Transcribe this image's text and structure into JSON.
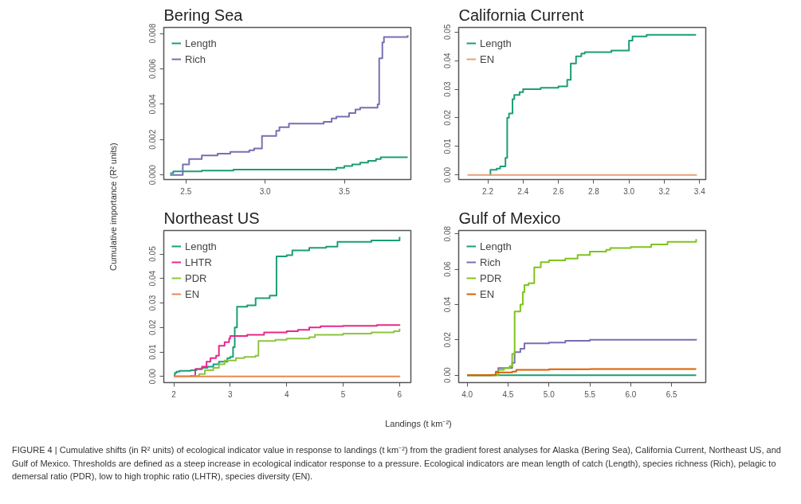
{
  "chart_data": [
    {
      "type": "step",
      "title": "Bering Sea",
      "ylabel": "Cumulative importance (R² units)",
      "xlabel": "Landings (t km⁻²)",
      "annotations": [
        "FIGURE 4 | Cumulative shifts (in R² units) of ecological indicator value in response to landings (t km⁻²) from the gradient forest analyses for Alaska (Bering Sea), California Current, Northeast US, and Gulf of Mexico. Thresholds are defined as a steep increase in ecological indicator response to a pressure. Ecological indicators are mean length of catch (Length), species richness (Rich), pelagic to demersal ratio (PDR), low to high trophic ratio (LHTR), species diversity (EN)."
      ],
      "legend": "top left",
      "grid": false,
      "line_style": "solid",
      "xlim": [
        2.36,
        3.92
      ],
      "xticks": [
        {
          "value": 2.5,
          "label": "2.5"
        },
        {
          "value": 3.0,
          "label": "3.0"
        },
        {
          "value": 3.5,
          "label": "3.5"
        }
      ],
      "ylim": [
        -0.00026,
        0.00834
      ],
      "yticks": [
        {
          "value": 0,
          "label": "0.000"
        },
        {
          "value": 0.002,
          "label": "0.002"
        },
        {
          "value": 0.004,
          "label": "0.004"
        },
        {
          "value": 0.006,
          "label": "0.006"
        },
        {
          "value": 0.008,
          "label": "0.008"
        }
      ],
      "series": [
        {
          "name": "Length",
          "color": "#1b9e77",
          "x": [
            2.4,
            2.42,
            2.6,
            2.8,
            3.0,
            3.45,
            3.5,
            3.55,
            3.6,
            3.65,
            3.7,
            3.73,
            3.9
          ],
          "values": [
            0.0001,
            0.0002,
            0.00025,
            0.0003,
            0.0003,
            0.0004,
            0.0005,
            0.0006,
            0.0007,
            0.0008,
            0.0009,
            0.001,
            0.001
          ]
        },
        {
          "name": "Rich",
          "color": "#7570b3",
          "x": [
            2.4,
            2.48,
            2.52,
            2.6,
            2.7,
            2.78,
            2.9,
            2.93,
            2.98,
            3.07,
            3.09,
            3.15,
            3.37,
            3.42,
            3.45,
            3.53,
            3.57,
            3.6,
            3.71,
            3.72,
            3.74,
            3.75,
            3.9
          ],
          "values": [
            0.0,
            0.0006,
            0.0009,
            0.0011,
            0.0012,
            0.0013,
            0.0014,
            0.0015,
            0.0022,
            0.0025,
            0.0027,
            0.0029,
            0.003,
            0.0032,
            0.0033,
            0.0035,
            0.0037,
            0.0038,
            0.004,
            0.0066,
            0.0075,
            0.0078,
            0.0079
          ]
        }
      ]
    },
    {
      "type": "step",
      "title": "California Current",
      "legend": "top left",
      "grid": false,
      "line_style": "solid",
      "xlim": [
        2.035,
        3.435
      ],
      "xticks": [
        {
          "value": 2.2,
          "label": "2.2"
        },
        {
          "value": 2.4,
          "label": "2.4"
        },
        {
          "value": 2.6,
          "label": "2.6"
        },
        {
          "value": 2.8,
          "label": "2.8"
        },
        {
          "value": 3.0,
          "label": "3.0"
        },
        {
          "value": 3.2,
          "label": "3.2"
        },
        {
          "value": 3.4,
          "label": "3.4"
        }
      ],
      "ylim": [
        -0.0016,
        0.0516
      ],
      "yticks": [
        {
          "value": 0,
          "label": "0.00"
        },
        {
          "value": 0.01,
          "label": "0.01"
        },
        {
          "value": 0.02,
          "label": "0.02"
        },
        {
          "value": 0.03,
          "label": "0.03"
        },
        {
          "value": 0.04,
          "label": "0.04"
        },
        {
          "value": 0.05,
          "label": "0.05"
        }
      ],
      "series": [
        {
          "name": "Length",
          "color": "#1b9e77",
          "x": [
            2.21,
            2.215,
            2.25,
            2.27,
            2.3,
            2.31,
            2.32,
            2.34,
            2.35,
            2.38,
            2.4,
            2.5,
            2.6,
            2.65,
            2.67,
            2.7,
            2.73,
            2.75,
            2.9,
            3.0,
            3.02,
            3.1,
            3.38
          ],
          "values": [
            0.0,
            0.0018,
            0.0022,
            0.003,
            0.006,
            0.02,
            0.0215,
            0.0265,
            0.028,
            0.029,
            0.03,
            0.0305,
            0.031,
            0.0333,
            0.039,
            0.0415,
            0.0425,
            0.043,
            0.0435,
            0.047,
            0.0485,
            0.049,
            0.049
          ]
        },
        {
          "name": "EN",
          "color": "#e6a176",
          "x": [
            2.085,
            3.385
          ],
          "values": [
            0.0,
            0.0
          ]
        }
      ]
    },
    {
      "type": "step",
      "title": "Northeast US",
      "legend": "top left",
      "grid": false,
      "line_style": "solid",
      "xlim": [
        1.823,
        6.2
      ],
      "xticks": [
        2,
        3,
        4,
        5,
        6
      ],
      "ylim": [
        -0.0025,
        0.0596
      ],
      "yticks": [
        {
          "value": 0,
          "label": "0.00"
        },
        {
          "value": 0.01,
          "label": "0.01"
        },
        {
          "value": 0.02,
          "label": "0.02"
        },
        {
          "value": 0.03,
          "label": "0.03"
        },
        {
          "value": 0.04,
          "label": "0.04"
        },
        {
          "value": 0.05,
          "label": "0.05"
        }
      ],
      "series": [
        {
          "name": "Length",
          "color": "#1b9e77",
          "x": [
            2.0,
            2.02,
            2.05,
            2.1,
            2.3,
            2.4,
            2.5,
            2.6,
            2.7,
            2.8,
            2.95,
            3.0,
            3.05,
            3.08,
            3.12,
            3.3,
            3.45,
            3.7,
            3.82,
            4.0,
            4.1,
            4.4,
            4.7,
            4.9,
            5.5,
            6.0
          ],
          "values": [
            0.0005,
            0.0015,
            0.002,
            0.0023,
            0.0025,
            0.003,
            0.0035,
            0.004,
            0.005,
            0.006,
            0.0075,
            0.008,
            0.012,
            0.02,
            0.0285,
            0.029,
            0.032,
            0.033,
            0.049,
            0.0495,
            0.0515,
            0.0525,
            0.053,
            0.055,
            0.0555,
            0.057
          ]
        },
        {
          "name": "LHTR",
          "color": "#e7298a",
          "x": [
            2.0,
            2.3,
            2.38,
            2.5,
            2.58,
            2.65,
            2.75,
            2.8,
            2.9,
            2.98,
            3.0,
            3.3,
            3.6,
            4.0,
            4.2,
            4.4,
            4.6,
            5.0,
            5.6,
            6.0
          ],
          "values": [
            0.0,
            0.0002,
            0.003,
            0.004,
            0.006,
            0.0075,
            0.0085,
            0.0125,
            0.014,
            0.0155,
            0.0165,
            0.017,
            0.018,
            0.0185,
            0.019,
            0.02,
            0.0205,
            0.0207,
            0.021,
            0.0212
          ]
        },
        {
          "name": "PDR",
          "color": "#8cc63f",
          "x": [
            2.0,
            2.35,
            2.45,
            2.55,
            2.7,
            2.8,
            2.9,
            3.1,
            3.25,
            3.45,
            3.5,
            3.8,
            4.0,
            4.4,
            4.5,
            5.0,
            5.5,
            5.9,
            6.0
          ],
          "values": [
            0.0,
            0.0002,
            0.001,
            0.0025,
            0.0035,
            0.005,
            0.0065,
            0.0075,
            0.008,
            0.0085,
            0.0145,
            0.015,
            0.0155,
            0.016,
            0.017,
            0.0175,
            0.018,
            0.0185,
            0.0195
          ]
        },
        {
          "name": "EN",
          "color": "#e8894f",
          "x": [
            2.0,
            6.0
          ],
          "values": [
            0.0,
            0.0002
          ]
        }
      ]
    },
    {
      "type": "step",
      "title": "Gulf of Mexico",
      "legend": "top left",
      "grid": false,
      "line_style": "solid",
      "xlim": [
        3.896,
        6.917
      ],
      "xticks": [
        {
          "value": 4.0,
          "label": "4.0"
        },
        {
          "value": 4.5,
          "label": "4.5"
        },
        {
          "value": 5.0,
          "label": "5.0"
        },
        {
          "value": 5.5,
          "label": "5.5"
        },
        {
          "value": 6.0,
          "label": "6.0"
        },
        {
          "value": 6.5,
          "label": "6.5"
        }
      ],
      "ylim": [
        -0.0042,
        0.0819
      ],
      "yticks": [
        {
          "value": 0,
          "label": "0.00"
        },
        {
          "value": 0.02,
          "label": "0.02"
        },
        {
          "value": 0.04,
          "label": "0.04"
        },
        {
          "value": 0.06,
          "label": "0.06"
        },
        {
          "value": 0.08,
          "label": "0.08"
        }
      ],
      "series": [
        {
          "name": "Length",
          "color": "#1b9e77",
          "x": [
            4.0,
            6.8
          ],
          "values": [
            0.0,
            0.0
          ]
        },
        {
          "name": "Rich",
          "color": "#7570b3",
          "x": [
            4.0,
            4.35,
            4.38,
            4.55,
            4.58,
            4.65,
            4.7,
            5.0,
            5.2,
            5.5,
            6.0,
            6.8
          ],
          "values": [
            0.0,
            0.002,
            0.004,
            0.007,
            0.013,
            0.015,
            0.018,
            0.0185,
            0.0195,
            0.02,
            0.02,
            0.0205
          ]
        },
        {
          "name": "PDR",
          "color": "#7fc31c",
          "x": [
            4.0,
            4.35,
            4.38,
            4.45,
            4.52,
            4.55,
            4.58,
            4.65,
            4.68,
            4.7,
            4.75,
            4.82,
            4.9,
            5.0,
            5.2,
            5.35,
            5.5,
            5.7,
            5.75,
            6.0,
            6.25,
            6.45,
            6.8
          ],
          "values": [
            0.0,
            0.0,
            0.003,
            0.004,
            0.005,
            0.012,
            0.036,
            0.04,
            0.047,
            0.051,
            0.052,
            0.061,
            0.064,
            0.065,
            0.066,
            0.068,
            0.07,
            0.071,
            0.072,
            0.0725,
            0.074,
            0.0755,
            0.077
          ]
        },
        {
          "name": "EN",
          "color": "#d95f02",
          "x": [
            4.0,
            4.3,
            4.35,
            4.55,
            4.6,
            5.0,
            5.5,
            6.8
          ],
          "values": [
            0.0,
            0.0002,
            0.0015,
            0.002,
            0.003,
            0.0033,
            0.0035,
            0.0035
          ]
        }
      ]
    }
  ]
}
